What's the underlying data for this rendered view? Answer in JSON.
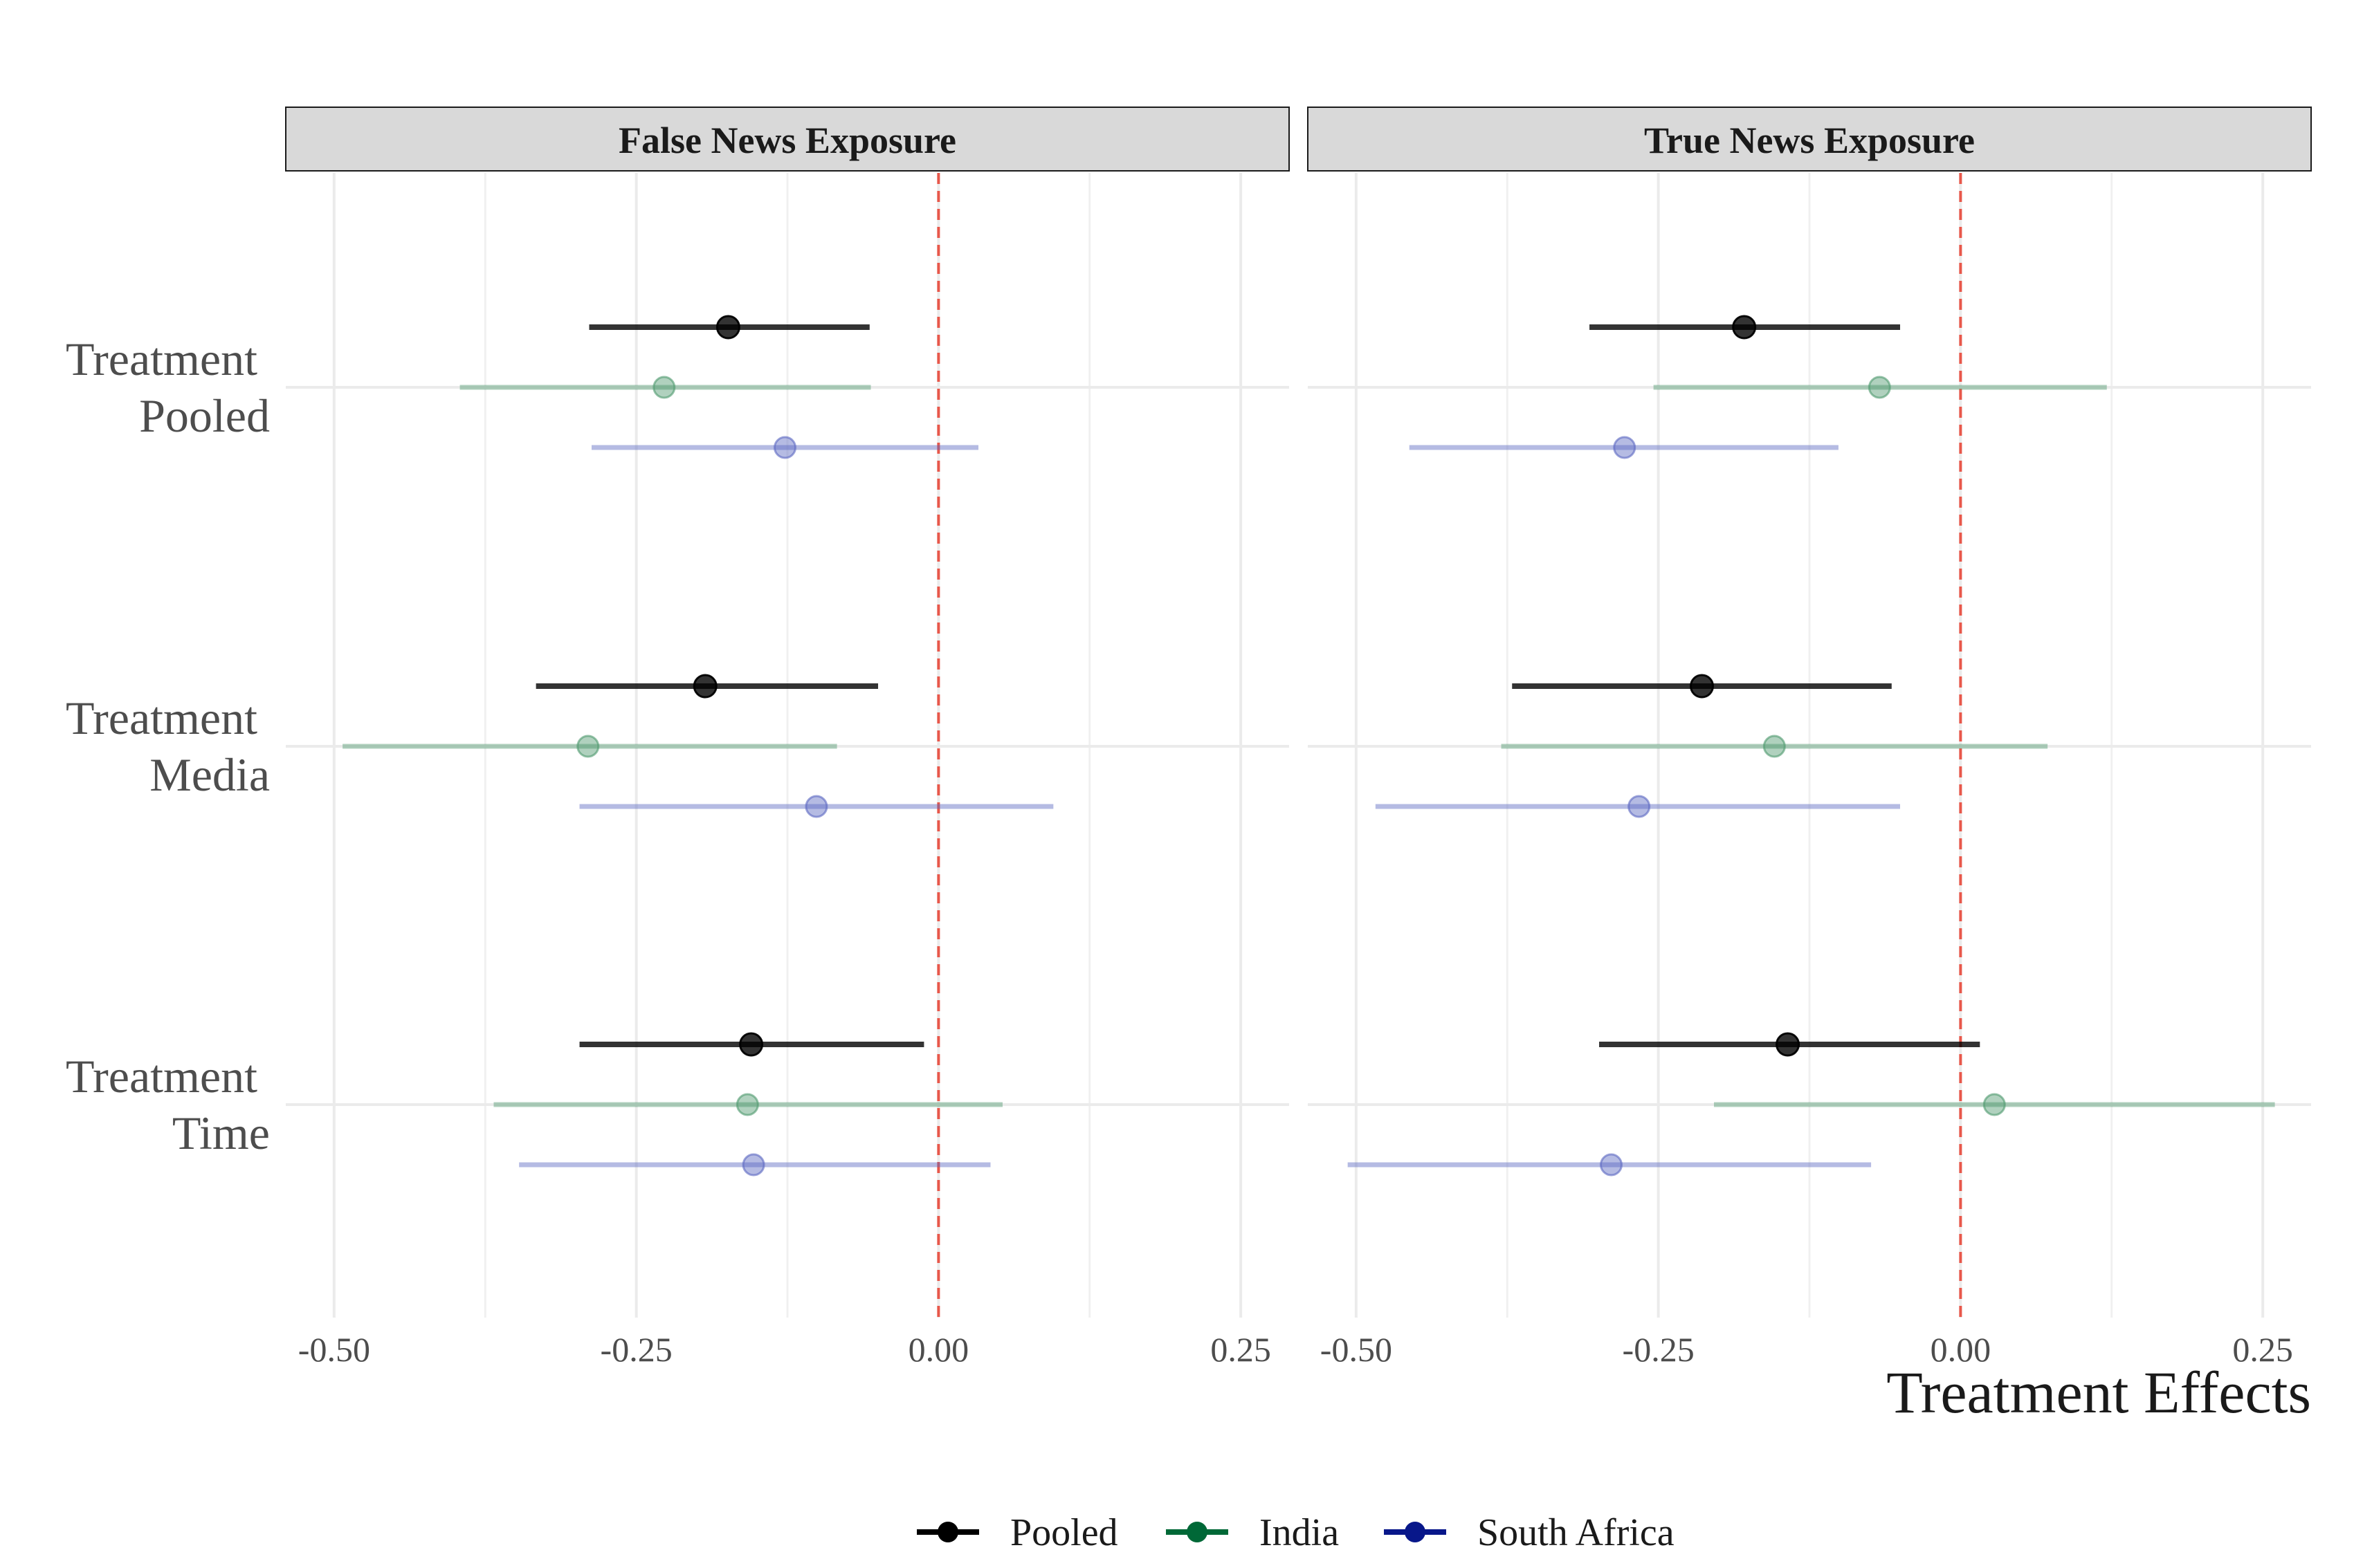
{
  "chart_data": {
    "type": "scatter",
    "subtype": "coefficient-plot",
    "xlabel": "Treatment Effects",
    "xlim": [
      -0.54,
      0.29
    ],
    "xticks": [
      -0.5,
      -0.25,
      0.0,
      0.25
    ],
    "xtick_labels": [
      "-0.50",
      "-0.25",
      "0.00",
      "0.25"
    ],
    "reference_line": {
      "x": 0,
      "style": "dashed",
      "color": "#e8574a"
    },
    "grid": true,
    "legend_position": "bottom",
    "categories": [
      {
        "line1": "Treatment",
        "line2": "Pooled"
      },
      {
        "line1": "Treatment",
        "line2": "Media"
      },
      {
        "line1": "Treatment",
        "line2": "Time"
      }
    ],
    "series_styles": [
      {
        "name": "Pooled",
        "color": "#000000",
        "legend_color": "#000000",
        "opacity": 0.8
      },
      {
        "name": "India",
        "color": "#4f9a6e",
        "legend_color": "#006837",
        "opacity": 0.45
      },
      {
        "name": "South Africa",
        "color": "#5b68c2",
        "legend_color": "#08178a",
        "opacity": 0.45
      }
    ],
    "panels": [
      {
        "title": "False News Exposure",
        "series": [
          {
            "name": "Pooled",
            "estimates": [
              -0.174,
              -0.193,
              -0.155
            ],
            "lower": [
              -0.289,
              -0.333,
              -0.297
            ],
            "upper": [
              -0.057,
              -0.05,
              -0.012
            ]
          },
          {
            "name": "India",
            "estimates": [
              -0.227,
              -0.29,
              -0.158
            ],
            "lower": [
              -0.396,
              -0.493,
              -0.368
            ],
            "upper": [
              -0.056,
              -0.084,
              0.053
            ]
          },
          {
            "name": "South Africa",
            "estimates": [
              -0.127,
              -0.101,
              -0.153
            ],
            "lower": [
              -0.287,
              -0.297,
              -0.347
            ],
            "upper": [
              0.033,
              0.095,
              0.043
            ]
          }
        ]
      },
      {
        "title": "True News Exposure",
        "series": [
          {
            "name": "Pooled",
            "estimates": [
              -0.179,
              -0.214,
              -0.143
            ],
            "lower": [
              -0.307,
              -0.371,
              -0.299
            ],
            "upper": [
              -0.05,
              -0.057,
              0.016
            ]
          },
          {
            "name": "India",
            "estimates": [
              -0.067,
              -0.154,
              0.028
            ],
            "lower": [
              -0.254,
              -0.38,
              -0.204
            ],
            "upper": [
              0.121,
              0.072,
              0.26
            ]
          },
          {
            "name": "South Africa",
            "estimates": [
              -0.278,
              -0.266,
              -0.289
            ],
            "lower": [
              -0.456,
              -0.484,
              -0.507
            ],
            "upper": [
              -0.101,
              -0.05,
              -0.074
            ]
          }
        ]
      }
    ]
  }
}
